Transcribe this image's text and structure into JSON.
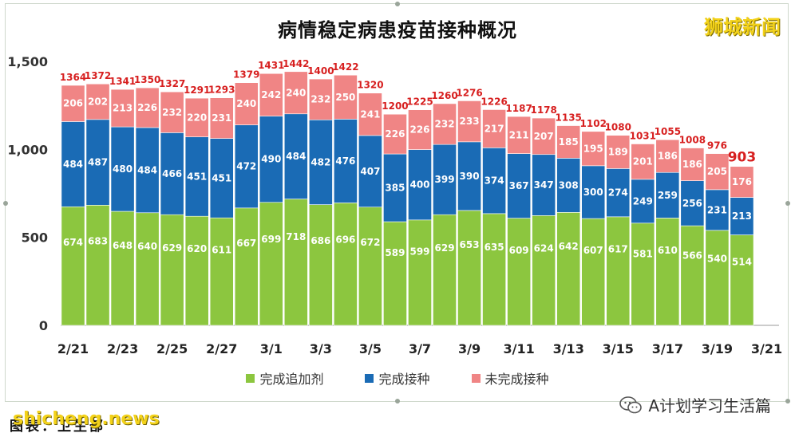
{
  "title": "病情稳定病患疫苗接种概况",
  "watermark_top": "狮城新闻",
  "footer": {
    "source": "图表：卫生部",
    "site": "shicheng.news",
    "wechat": "A计划学习生活篇"
  },
  "legend": [
    {
      "label": "完成追加剂",
      "color": "#8cc63f"
    },
    {
      "label": "完成接种",
      "color": "#1a6bb5"
    },
    {
      "label": "未完成接种",
      "color": "#f08585"
    }
  ],
  "chart_data": {
    "type": "bar",
    "stacked": true,
    "title": "病情稳定病患疫苗接种概况",
    "categories": [
      "2/21",
      "2/22",
      "2/23",
      "2/24",
      "2/25",
      "2/26",
      "2/27",
      "2/28",
      "3/1",
      "3/2",
      "3/3",
      "3/4",
      "3/5",
      "3/6",
      "3/7",
      "3/8",
      "3/9",
      "3/10",
      "3/11",
      "3/12",
      "3/13",
      "3/14",
      "3/15",
      "3/16",
      "3/17",
      "3/18",
      "3/19",
      "3/20",
      "3/21"
    ],
    "x_tick_labels": [
      "2/21",
      "2/23",
      "2/25",
      "2/27",
      "3/1",
      "3/3",
      "3/5",
      "3/7",
      "3/9",
      "3/11",
      "3/13",
      "3/15",
      "3/17",
      "3/19",
      "3/21"
    ],
    "ylim": [
      0,
      1500
    ],
    "y_ticks": [
      0,
      500,
      1000,
      1500
    ],
    "y_tick_labels": [
      "0",
      "500",
      "1,000",
      "1,500"
    ],
    "series": [
      {
        "name": "完成追加剂",
        "color": "#8cc63f",
        "values": [
          674,
          683,
          648,
          640,
          629,
          620,
          611,
          667,
          699,
          718,
          686,
          696,
          672,
          589,
          599,
          629,
          653,
          635,
          609,
          624,
          642,
          607,
          617,
          581,
          610,
          566,
          540,
          514,
          null
        ]
      },
      {
        "name": "完成接种",
        "color": "#1a6bb5",
        "values": [
          484,
          487,
          480,
          484,
          466,
          451,
          451,
          472,
          490,
          484,
          482,
          476,
          407,
          385,
          400,
          399,
          390,
          374,
          367,
          347,
          308,
          300,
          274,
          249,
          259,
          256,
          231,
          213,
          null
        ]
      },
      {
        "name": "未完成接种",
        "color": "#f08585",
        "values": [
          206,
          202,
          213,
          226,
          232,
          220,
          231,
          240,
          242,
          240,
          232,
          250,
          241,
          226,
          226,
          232,
          233,
          217,
          211,
          207,
          185,
          195,
          189,
          201,
          186,
          186,
          205,
          176,
          null
        ]
      }
    ],
    "totals": [
      1364,
      1372,
      1341,
      1350,
      1327,
      1291,
      1293,
      1379,
      1431,
      1442,
      1400,
      1422,
      1320,
      1200,
      1225,
      1260,
      1276,
      1226,
      1187,
      1178,
      1135,
      1102,
      1080,
      1031,
      1055,
      1008,
      976,
      903,
      null
    ],
    "highlight_total_index": 27,
    "grid": false,
    "legend_position": "bottom"
  }
}
